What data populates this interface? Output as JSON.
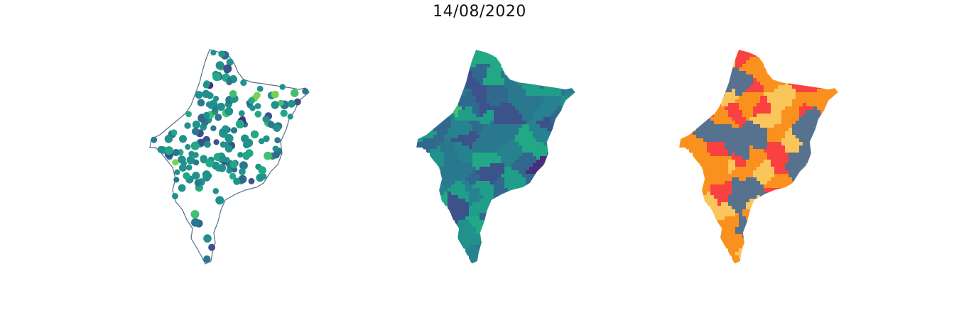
{
  "title": "14/08/2020",
  "maps": [
    {
      "name": "points",
      "outline_color": "#54708a",
      "point_colors": [
        "#21918c",
        "#2a788e",
        "#22a884",
        "#31688e",
        "#3b528b",
        "#44bf70",
        "#7ad151",
        "#472d7b",
        "#fde725"
      ]
    },
    {
      "name": "choropleth-viridis",
      "fill_colors": [
        "#2a788e",
        "#21918c",
        "#22a884",
        "#31688e",
        "#3b528b",
        "#26828e",
        "#1f9e89"
      ],
      "accent_colors": [
        "#fde725",
        "#7ad151",
        "#44bf70",
        "#472d7b"
      ]
    },
    {
      "name": "choropleth-categories",
      "fill_colors": [
        "#fac55a",
        "#fa4141",
        "#56728f",
        "#fa911e"
      ]
    }
  ]
}
